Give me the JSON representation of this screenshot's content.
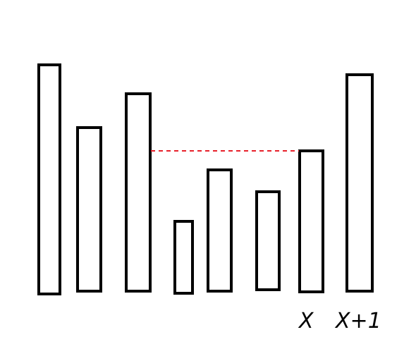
{
  "colors": {
    "background": "#ffffff",
    "bar_outline": "#000000",
    "dashed_line": "#e8202a"
  },
  "labels": {
    "x": "X",
    "x_plus_1": "X+1"
  },
  "bars": [
    {
      "name": "bar-1"
    },
    {
      "name": "bar-2"
    },
    {
      "name": "bar-3"
    },
    {
      "name": "bar-4"
    },
    {
      "name": "bar-5"
    },
    {
      "name": "bar-6"
    },
    {
      "name": "bar-7"
    },
    {
      "name": "bar-8"
    }
  ]
}
